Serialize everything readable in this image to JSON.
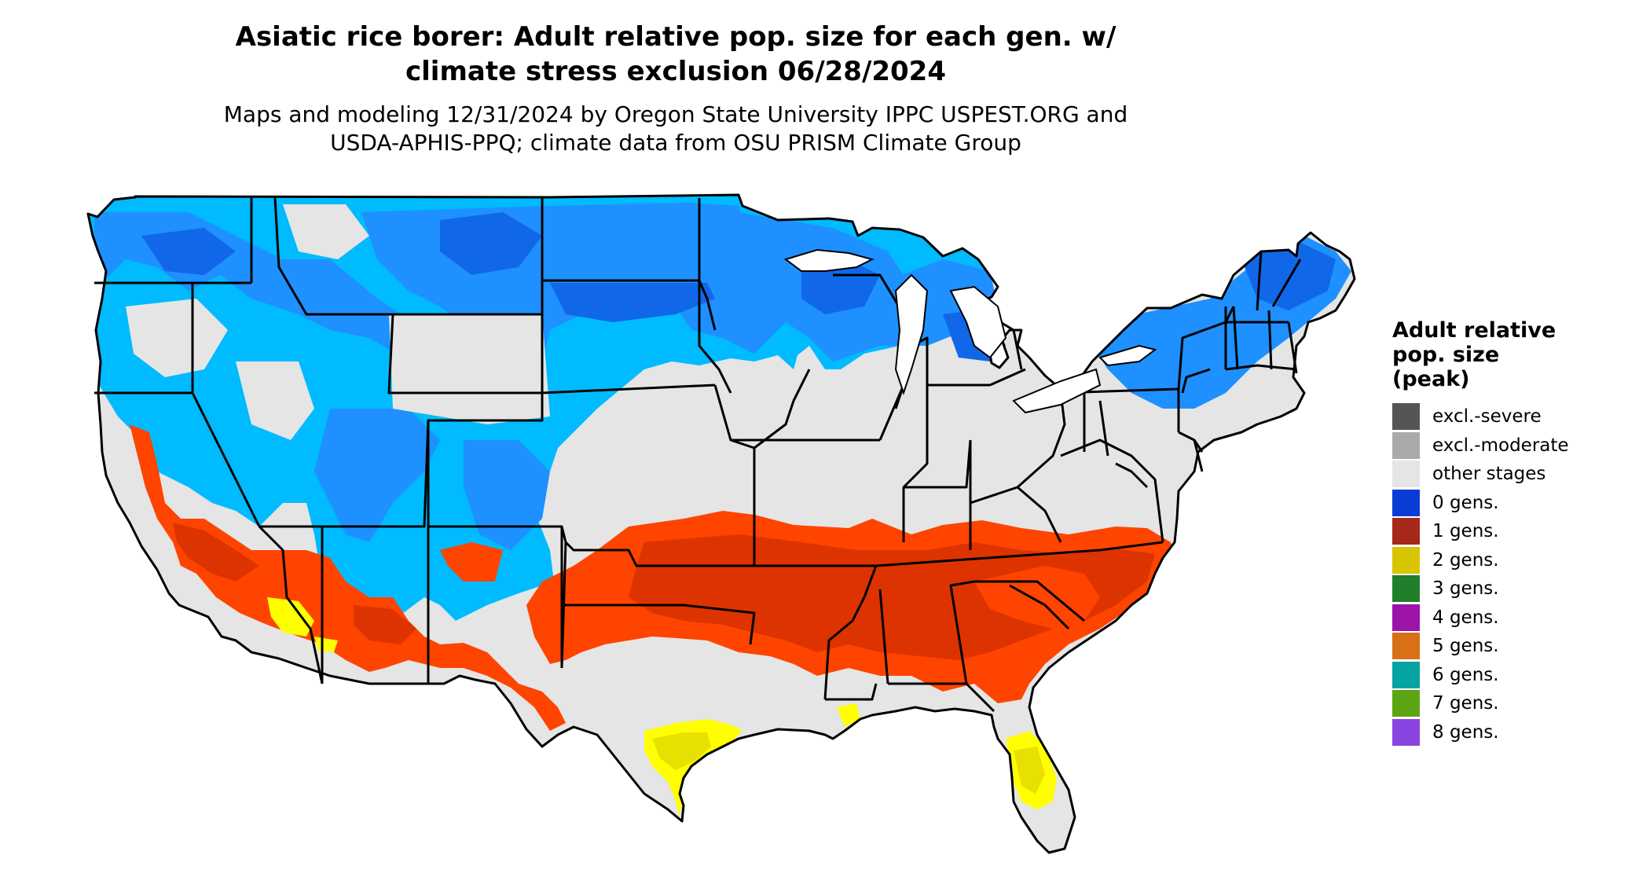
{
  "title": {
    "line1": "Asiatic rice borer: Adult relative pop. size for each gen. w/",
    "line2": "climate stress exclusion 06/28/2024"
  },
  "subtitle": {
    "line1": "Maps and modeling 12/31/2024 by Oregon State University IPPC USPEST.ORG and",
    "line2": "USDA-APHIS-PPQ; climate data from OSU PRISM Climate Group"
  },
  "legend": {
    "title_lines": [
      "Adult relative",
      "pop. size",
      "(peak)"
    ],
    "items": [
      {
        "label": "excl.-severe",
        "color": "#555555"
      },
      {
        "label": "excl.-moderate",
        "color": "#aaaaaa"
      },
      {
        "label": "other stages",
        "color": "#e5e5e5"
      },
      {
        "label": "0 gens.",
        "color": "#0a3cd6"
      },
      {
        "label": "1 gens.",
        "color": "#a6281a"
      },
      {
        "label": "2 gens.",
        "color": "#d8c400"
      },
      {
        "label": "3 gens.",
        "color": "#1f7f2a"
      },
      {
        "label": "4 gens.",
        "color": "#9c14a8"
      },
      {
        "label": "5 gens.",
        "color": "#d87018"
      },
      {
        "label": "6 gens.",
        "color": "#06a3a3"
      },
      {
        "label": "7 gens.",
        "color": "#5ea514"
      },
      {
        "label": "8 gens.",
        "color": "#8a45e0"
      }
    ]
  },
  "map_colors": {
    "background_land": "#e5e5e5",
    "blue_light": "#00bbff",
    "blue_mid": "#1e90ff",
    "blue_dark": "#1068e8",
    "red_orange": "#ff4400",
    "red_dark": "#dd3300",
    "yellow": "#ffff00",
    "yellow_dark": "#e8e000",
    "border": "#000000"
  }
}
